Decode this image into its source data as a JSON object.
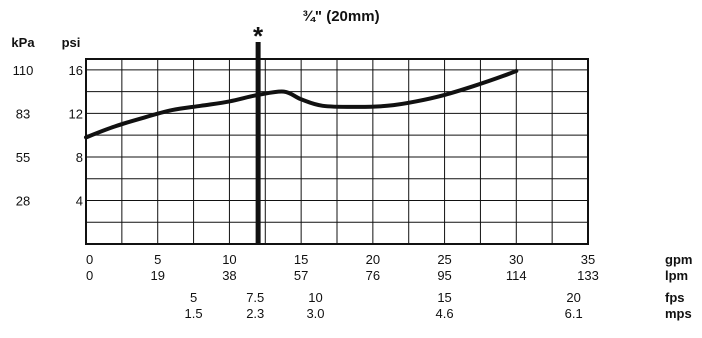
{
  "chart_data": {
    "type": "line",
    "title": "¾\" (20mm)",
    "marker_label": "*",
    "marker_x": 12,
    "y_units": {
      "kpa": "kPa",
      "psi": "psi"
    },
    "ylim": [
      0,
      17
    ],
    "xlim": [
      0,
      35
    ],
    "y_ticks": [
      {
        "psi": 16,
        "psi_label": "16",
        "kpa_label": "110"
      },
      {
        "psi": 12,
        "psi_label": "12",
        "kpa_label": "83"
      },
      {
        "psi": 8,
        "psi_label": "8",
        "kpa_label": "55"
      },
      {
        "psi": 4,
        "psi_label": "4",
        "kpa_label": "28"
      }
    ],
    "x_rows": [
      {
        "unit": "gpm",
        "ticks": [
          {
            "x": 0,
            "label": "0"
          },
          {
            "x": 5,
            "label": "5"
          },
          {
            "x": 10,
            "label": "10"
          },
          {
            "x": 15,
            "label": "15"
          },
          {
            "x": 20,
            "label": "20"
          },
          {
            "x": 25,
            "label": "25"
          },
          {
            "x": 30,
            "label": "30"
          },
          {
            "x": 35,
            "label": "35"
          }
        ]
      },
      {
        "unit": "lpm",
        "ticks": [
          {
            "x": 0,
            "label": "0"
          },
          {
            "x": 5,
            "label": "19"
          },
          {
            "x": 10,
            "label": "38"
          },
          {
            "x": 15,
            "label": "57"
          },
          {
            "x": 20,
            "label": "76"
          },
          {
            "x": 25,
            "label": "95"
          },
          {
            "x": 30,
            "label": "114"
          },
          {
            "x": 35,
            "label": "133"
          }
        ]
      },
      {
        "unit": "fps",
        "ticks": [
          {
            "x": 7.5,
            "label": "5"
          },
          {
            "x": 11.8,
            "label": "7.5"
          },
          {
            "x": 16,
            "label": "10"
          },
          {
            "x": 25,
            "label": "15"
          },
          {
            "x": 34,
            "label": "20"
          }
        ]
      },
      {
        "unit": "mps",
        "ticks": [
          {
            "x": 7.5,
            "label": "1.5"
          },
          {
            "x": 11.8,
            "label": "2.3"
          },
          {
            "x": 16,
            "label": "3.0"
          },
          {
            "x": 25,
            "label": "4.6"
          },
          {
            "x": 34,
            "label": "6.1"
          }
        ]
      }
    ],
    "series": [
      {
        "points": [
          [
            0,
            9.8
          ],
          [
            2,
            10.8
          ],
          [
            4,
            11.6
          ],
          [
            6,
            12.3
          ],
          [
            8,
            12.7
          ],
          [
            10,
            13.1
          ],
          [
            12,
            13.7
          ],
          [
            13.8,
            14.0
          ],
          [
            15,
            13.3
          ],
          [
            16.5,
            12.7
          ],
          [
            19,
            12.6
          ],
          [
            21,
            12.7
          ],
          [
            23,
            13.1
          ],
          [
            25,
            13.7
          ],
          [
            27,
            14.5
          ],
          [
            29,
            15.4
          ],
          [
            30,
            15.9
          ]
        ]
      }
    ]
  }
}
